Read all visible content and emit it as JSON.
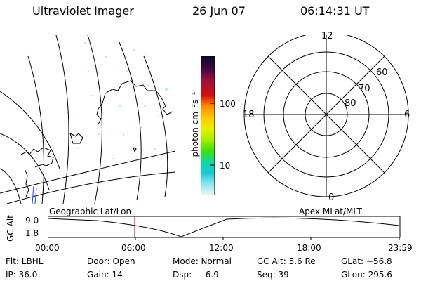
{
  "header": {
    "instrument": "Ultraviolet Imager",
    "date": "26 Jun 07",
    "time": "06:14:31 UT"
  },
  "colorbar": {
    "unit_label": "photon cm⁻²s⁻¹",
    "ticks": [
      "100",
      "10"
    ],
    "colors": [
      "#0a0a2a",
      "#3a0640",
      "#6e0a5a",
      "#a0103a",
      "#d01010",
      "#e84a00",
      "#ff8c00",
      "#ffc800",
      "#e8f000",
      "#a0f000",
      "#40e010",
      "#10d8a0",
      "#20c8d8",
      "#90e4f0",
      "#e8f4f8"
    ]
  },
  "polar_plot": {
    "mlt_labels": [
      "12",
      "6",
      "0",
      "18"
    ],
    "lat_labels": [
      "60",
      "70",
      "80"
    ]
  },
  "timeline": {
    "left_label": "Geographic Lat/Lon",
    "right_label": "Apex MLat/MLT",
    "yaxis_label": "GC Alt",
    "y_ticks": [
      "9.0",
      "1.8"
    ],
    "x_ticks": [
      "00:00",
      "06:00",
      "12:00",
      "18:00",
      "23:59"
    ],
    "current_marker_color": "#cc0000"
  },
  "status": {
    "flt": "Flt: LBHL",
    "ip": "IP: 36.0",
    "door": "Door: Open",
    "gain": "Gain: 14",
    "mode": "Mode: Normal",
    "dsp": "Dsp:    -6.9",
    "gcalt": "GC Alt: 5.6 Re",
    "seq": "Seq: 39",
    "glat": "GLat: −56.8",
    "glon": "GLon: 295.6"
  }
}
